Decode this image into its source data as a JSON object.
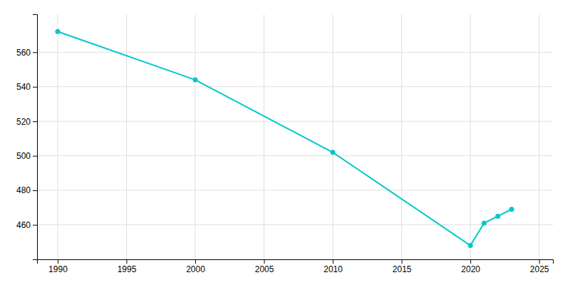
{
  "chart_data": {
    "type": "line",
    "x": [
      1990,
      2000,
      2010,
      2020,
      2021,
      2022,
      2023
    ],
    "values": [
      572,
      544,
      502,
      448,
      461,
      465,
      469
    ],
    "color": "#00c8cc",
    "marker": "circle",
    "xlim": [
      1988.5,
      2026
    ],
    "ylim": [
      440,
      582
    ],
    "xticks": [
      1990,
      1995,
      2000,
      2005,
      2010,
      2015,
      2020,
      2025
    ],
    "yticks": [
      460,
      480,
      500,
      520,
      540,
      560
    ],
    "grid": true
  }
}
